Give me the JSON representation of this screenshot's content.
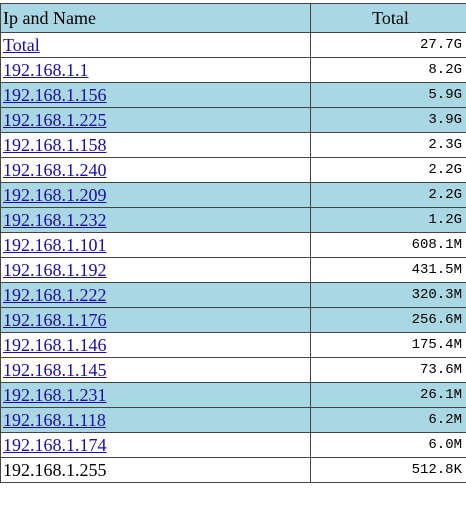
{
  "table": {
    "headers": {
      "name": "Ip and Name",
      "total": "Total"
    },
    "rows": [
      {
        "name": "Total",
        "total": "27.7G",
        "link": true,
        "highlight": false
      },
      {
        "name": "192.168.1.1",
        "total": "8.2G",
        "link": true,
        "highlight": false
      },
      {
        "name": "192.168.1.156",
        "total": "5.9G",
        "link": true,
        "highlight": true
      },
      {
        "name": "192.168.1.225",
        "total": "3.9G",
        "link": true,
        "highlight": true
      },
      {
        "name": "192.168.1.158",
        "total": "2.3G",
        "link": true,
        "highlight": false
      },
      {
        "name": "192.168.1.240",
        "total": "2.2G",
        "link": true,
        "highlight": false
      },
      {
        "name": "192.168.1.209",
        "total": "2.2G",
        "link": true,
        "highlight": true
      },
      {
        "name": "192.168.1.232",
        "total": "1.2G",
        "link": true,
        "highlight": true
      },
      {
        "name": "192.168.1.101",
        "total": "608.1M",
        "link": true,
        "highlight": false
      },
      {
        "name": "192.168.1.192",
        "total": "431.5M",
        "link": true,
        "highlight": false
      },
      {
        "name": "192.168.1.222",
        "total": "320.3M",
        "link": true,
        "highlight": true
      },
      {
        "name": "192.168.1.176",
        "total": "256.6M",
        "link": true,
        "highlight": true
      },
      {
        "name": "192.168.1.146",
        "total": "175.4M",
        "link": true,
        "highlight": false
      },
      {
        "name": "192.168.1.145",
        "total": "73.6M",
        "link": true,
        "highlight": false
      },
      {
        "name": "192.168.1.231",
        "total": "26.1M",
        "link": true,
        "highlight": true
      },
      {
        "name": "192.168.1.118",
        "total": "6.2M",
        "link": true,
        "highlight": true
      },
      {
        "name": "192.168.1.174",
        "total": "6.0M",
        "link": true,
        "highlight": false
      },
      {
        "name": "192.168.1.255",
        "total": "512.8K",
        "link": false,
        "highlight": false
      }
    ]
  }
}
